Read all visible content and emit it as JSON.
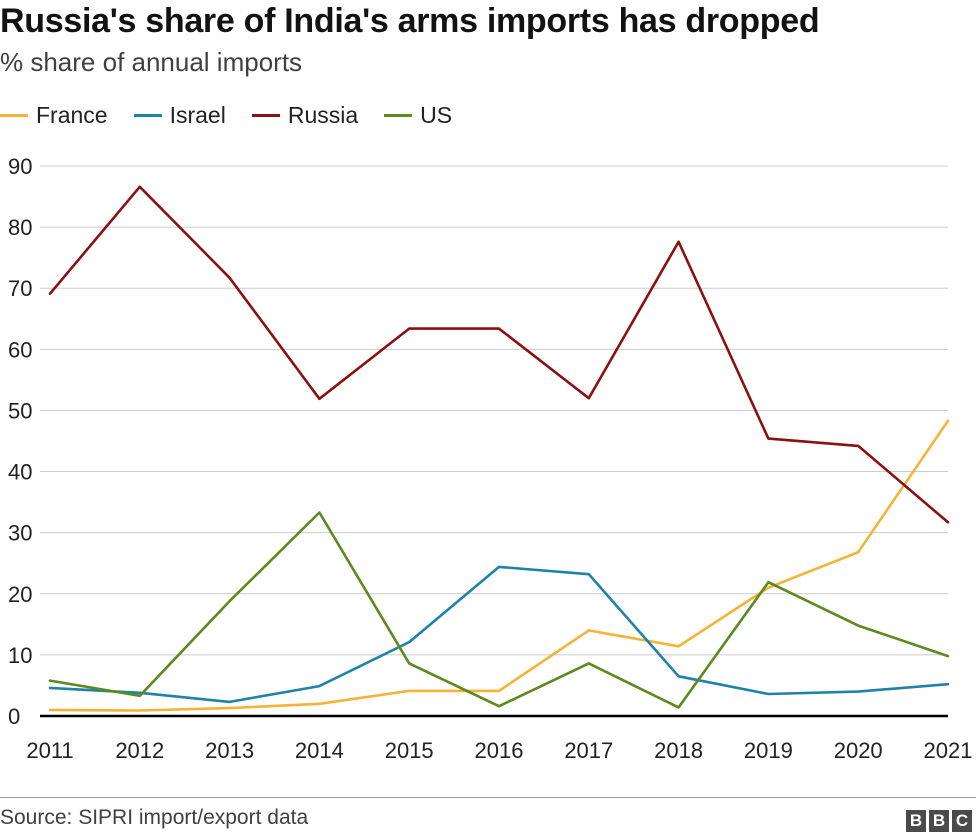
{
  "header": {
    "title": "Russia's share of India's arms imports has dropped",
    "subtitle": "% share of annual imports"
  },
  "footer": {
    "source": "Source: SIPRI import/export data",
    "logo_letters": [
      "B",
      "B",
      "C"
    ]
  },
  "chart_data": {
    "type": "line",
    "title": "Russia's share of India's arms imports has dropped",
    "subtitle": "% share of annual imports",
    "x": [
      2011,
      2012,
      2013,
      2014,
      2015,
      2016,
      2017,
      2018,
      2019,
      2020,
      2021
    ],
    "x_tick_labels": [
      "2011",
      "2012",
      "2013",
      "2014",
      "2015",
      "2016",
      "2017",
      "2018",
      "2019",
      "2020",
      "2021"
    ],
    "y_ticks": [
      0,
      10,
      20,
      30,
      40,
      50,
      60,
      70,
      80,
      90
    ],
    "ylim": [
      0,
      90
    ],
    "grid": true,
    "legend_position": "top-left",
    "series": [
      {
        "name": "France",
        "color": "#f5b335",
        "values": [
          1.0,
          0.9,
          1.3,
          2.0,
          4.1,
          4.1,
          14.0,
          11.4,
          21.0,
          26.8,
          48.3
        ]
      },
      {
        "name": "Israel",
        "color": "#1f82a8",
        "values": [
          4.6,
          3.8,
          2.3,
          4.9,
          12.1,
          24.4,
          23.2,
          6.5,
          3.6,
          4.0,
          5.2
        ]
      },
      {
        "name": "Russia",
        "color": "#8b1111",
        "values": [
          69.1,
          86.6,
          71.7,
          51.9,
          63.4,
          63.4,
          52.0,
          77.6,
          45.4,
          44.2,
          31.7
        ]
      },
      {
        "name": "US",
        "color": "#5c8a1e",
        "values": [
          5.8,
          3.3,
          18.8,
          33.3,
          8.6,
          1.6,
          8.6,
          1.4,
          21.9,
          14.8,
          9.8
        ]
      }
    ]
  }
}
